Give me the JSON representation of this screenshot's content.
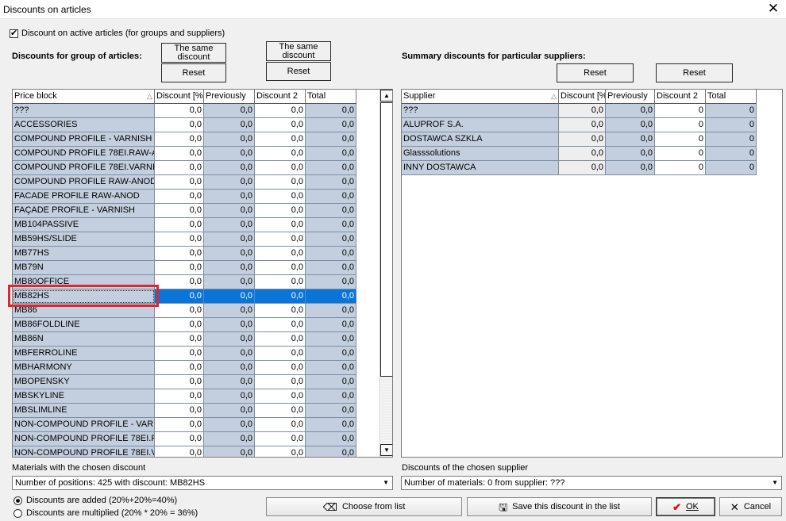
{
  "window": {
    "title": "Discounts on articles",
    "close_icon": "close-icon"
  },
  "active_articles": {
    "label": "Discount on active articles (for groups and suppliers)",
    "checked": true
  },
  "groups": {
    "heading": "Discounts for group of articles:",
    "same_discount_label": "The same discount",
    "reset_label": "Reset",
    "columns": [
      "Price block",
      "Discount [%",
      "Previously",
      "Discount 2",
      "Total"
    ],
    "rows": [
      [
        "???",
        "0,0",
        "0,0",
        "0,0",
        "0,0"
      ],
      [
        "ACCESSORIES",
        "0,0",
        "0,0",
        "0,0",
        "0,0"
      ],
      [
        "COMPOUND PROFILE - VARNISH",
        "0,0",
        "0,0",
        "0,0",
        "0,0"
      ],
      [
        "COMPOUND PROFILE 78EI.RAW-A",
        "0,0",
        "0,0",
        "0,0",
        "0,0"
      ],
      [
        "COMPOUND PROFILE 78EI.VARNI",
        "0,0",
        "0,0",
        "0,0",
        "0,0"
      ],
      [
        "COMPOUND PROFILE RAW-ANOD",
        "0,0",
        "0,0",
        "0,0",
        "0,0"
      ],
      [
        "FACADE PROFILE RAW-ANOD",
        "0,0",
        "0,0",
        "0,0",
        "0,0"
      ],
      [
        "FAÇADE PROFILE - VARNISH",
        "0,0",
        "0,0",
        "0,0",
        "0,0"
      ],
      [
        "MB104PASSIVE",
        "0,0",
        "0,0",
        "0,0",
        "0,0"
      ],
      [
        "MB59HS/SLIDE",
        "0,0",
        "0,0",
        "0,0",
        "0,0"
      ],
      [
        "MB77HS",
        "0,0",
        "0,0",
        "0,0",
        "0,0"
      ],
      [
        "MB79N",
        "0,0",
        "0,0",
        "0,0",
        "0,0"
      ],
      [
        "MB80OFFICE",
        "0,0",
        "0,0",
        "0,0",
        "0,0"
      ],
      [
        "MB82HS",
        "0,0",
        "0,0",
        "0,0",
        "0,0"
      ],
      [
        "MB86",
        "0,0",
        "0,0",
        "0,0",
        "0,0"
      ],
      [
        "MB86FOLDLINE",
        "0,0",
        "0,0",
        "0,0",
        "0,0"
      ],
      [
        "MB86N",
        "0,0",
        "0,0",
        "0,0",
        "0,0"
      ],
      [
        "MBFERROLINE",
        "0,0",
        "0,0",
        "0,0",
        "0,0"
      ],
      [
        "MBHARMONY",
        "0,0",
        "0,0",
        "0,0",
        "0,0"
      ],
      [
        "MBOPENSKY",
        "0,0",
        "0,0",
        "0,0",
        "0,0"
      ],
      [
        "MBSKYLINE",
        "0,0",
        "0,0",
        "0,0",
        "0,0"
      ],
      [
        "MBSLIMLINE",
        "0,0",
        "0,0",
        "0,0",
        "0,0"
      ],
      [
        "NON-COMPOUND PROFILE - VARN",
        "0,0",
        "0,0",
        "0,0",
        "0,0"
      ],
      [
        "NON-COMPOUND PROFILE 78EI.R",
        "0,0",
        "0,0",
        "0,0",
        "0,0"
      ],
      [
        "NON-COMPOUND PROFILE 78EI.V",
        "0,0",
        "0,0",
        "0,0",
        "0,0"
      ]
    ],
    "selected_index": 13,
    "materials_label": "Materials with the chosen discount",
    "materials_value": "Number of positions: 425  with discount: MB82HS"
  },
  "suppliers": {
    "heading": "Summary discounts for particular suppliers:",
    "reset_label": "Reset",
    "columns": [
      "Supplier",
      "Discount [%",
      "Previously",
      "Discount 2",
      "Total"
    ],
    "rows": [
      [
        "???",
        "0,0",
        "0,0",
        "0",
        "0"
      ],
      [
        "ALUPROF S.A.",
        "0,0",
        "0,0",
        "0",
        "0"
      ],
      [
        "DOSTAWCA SZKLA",
        "0,0",
        "0,0",
        "0",
        "0"
      ],
      [
        "Glasssolutions",
        "0,0",
        "0,0",
        "0",
        "0"
      ],
      [
        "INNY DOSTAWCA",
        "0,0",
        "0,0",
        "0",
        "0"
      ]
    ],
    "chosen_label": "Discounts of the chosen supplier",
    "chosen_value": "Number of materials: 0 from supplier: ???"
  },
  "mode": {
    "added_label": "Discounts are added (20%+20%=40%)",
    "multiplied_label": "Discounts are multiplied (20% * 20% = 36%)",
    "selected": "added"
  },
  "buttons": {
    "choose_label": "Choose from list",
    "save_label": "Save this discount in the list",
    "ok_label": "OK",
    "cancel_label": "Cancel"
  },
  "colors": {
    "selection": "#0a74d9",
    "cell_blue": "#c3cfde",
    "highlight": "#e0262f"
  }
}
